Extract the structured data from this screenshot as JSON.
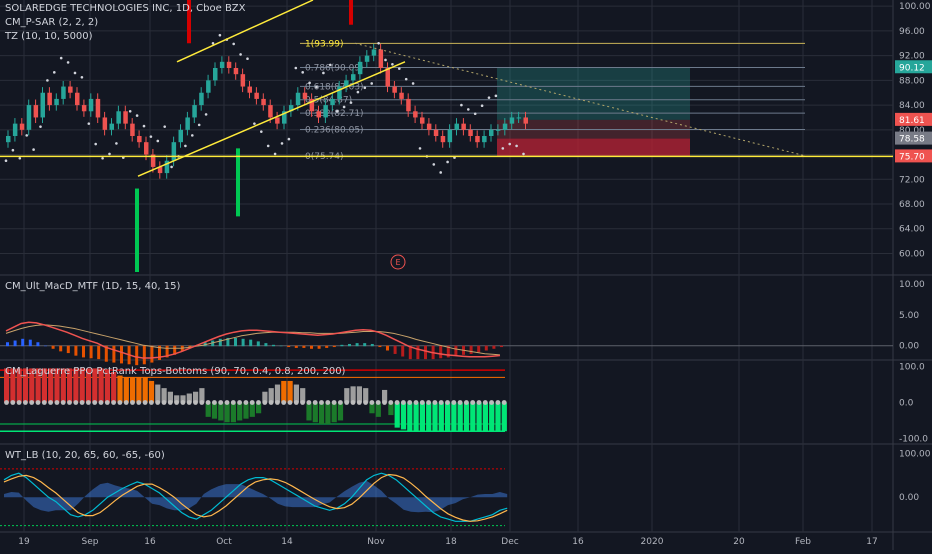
{
  "header": {
    "title": "SOLAREDGE TECHNOLOGIES INC, 1D, Cboe BZX",
    "indicators": [
      "CM_P-SAR (2, 2, 2)",
      "TZ (10, 10, 5000)"
    ]
  },
  "panes": {
    "macd": {
      "label": "CM_Ult_MacD_MTF (1D, 15, 40, 15)",
      "ticks": [
        "10.00",
        "5.00",
        "0.00"
      ]
    },
    "laguerre": {
      "label": "CM_Laguerre PPO PctRank Tops-Bottoms (90, 70, 0.4, 0.8, 200, 200)",
      "ticks": [
        "100.0",
        "0.0",
        "-100.0"
      ]
    },
    "wt": {
      "label": "WT_LB (10, 20, 65, 60, -65, -60)",
      "ticks": [
        "100.00",
        "0.00"
      ]
    }
  },
  "event_marker": "E",
  "colors": {
    "background": "#131722",
    "up_candle": "#26a69a",
    "down_candle": "#ef5350",
    "trend_line": "#ffeb3b",
    "grid": "#2a2e39",
    "axis_text": "#b2b5be"
  },
  "chart_data": [
    {
      "type": "candlestick",
      "title": "SOLAREDGE TECHNOLOGIES INC, 1D, Cboe BZX",
      "ylim": [
        57,
        101
      ],
      "y_ticks": [
        100.0,
        96.0,
        92.0,
        88.0,
        84.0,
        80.0,
        76.0,
        72.0,
        68.0,
        64.0,
        60.0
      ],
      "x_tick_labels": [
        "19",
        "Sep",
        "16",
        "Oct",
        "14",
        "Nov",
        "18",
        "Dec",
        "16",
        "2020",
        "20",
        "Feb",
        "17"
      ],
      "close": [
        79,
        81,
        80,
        84,
        82,
        86,
        84,
        85,
        87,
        86,
        84,
        83,
        85,
        82,
        80,
        81,
        83,
        81,
        79,
        78,
        76,
        74,
        73,
        75,
        78,
        80,
        82,
        84,
        86,
        88,
        90,
        91,
        90,
        89,
        87,
        86,
        85,
        84,
        82,
        81,
        83,
        84,
        86,
        85,
        83,
        82,
        84,
        85,
        87,
        88,
        89,
        91,
        92,
        93,
        90,
        87,
        86,
        85,
        83,
        82,
        81,
        80,
        79,
        78,
        80,
        81,
        80,
        79,
        78,
        79,
        80,
        80,
        81,
        82,
        82,
        81
      ],
      "price_labels": [
        {
          "text": "90.12",
          "value": 90.12,
          "color": "#26a69a"
        },
        {
          "text": "81.61",
          "value": 81.61,
          "color": "#ef5350"
        },
        {
          "text": "78.58",
          "value": 78.58,
          "color": "#787b86"
        },
        {
          "text": "75.70",
          "value": 75.7,
          "color": "#ef5350"
        }
      ],
      "fib_levels": [
        {
          "label": "1(93.99)",
          "value": 93.99
        },
        {
          "label": "0.786(90.09)",
          "value": 90.09
        },
        {
          "label": "0.618(87.03)",
          "value": 87.03
        },
        {
          "label": "0.5(84.87)",
          "value": 84.87
        },
        {
          "label": "0.382(82.71)",
          "value": 82.71
        },
        {
          "label": "0.236(80.05)",
          "value": 80.05
        },
        {
          "label": "0(75.74)",
          "value": 75.74
        }
      ],
      "position": {
        "entry": 81.61,
        "target": 90.12,
        "stop": 78.58,
        "stop_far": 75.7
      },
      "support_level": 75.7
    },
    {
      "type": "line",
      "title": "CM_Ult_MacD_MTF (1D, 15, 40, 15)",
      "ylim": [
        -2,
        11
      ],
      "macd": [
        2.4,
        3.0,
        3.6,
        3.8,
        3.7,
        3.4,
        3.0,
        2.6,
        2.2,
        1.7,
        1.2,
        0.8,
        0.4,
        -0.2,
        -0.6,
        -1.0,
        -1.4,
        -1.8,
        -2.0,
        -2.0,
        -1.9,
        -1.7,
        -1.4,
        -1.0,
        -0.5,
        0.0,
        0.5,
        1.0,
        1.5,
        1.9,
        2.2,
        2.4,
        2.5,
        2.5,
        2.4,
        2.3,
        2.2,
        2.1,
        2.0,
        1.9,
        1.8,
        1.7,
        1.8,
        1.9,
        2.1,
        2.3,
        2.5,
        2.6,
        2.5,
        2.2,
        1.7,
        1.1,
        0.5,
        -0.1,
        -0.5,
        -0.8,
        -1.1,
        -1.3,
        -1.5,
        -1.6,
        -1.7,
        -1.8,
        -1.8,
        -1.8,
        -1.7,
        -1.6
      ],
      "signal": [
        2.0,
        2.4,
        2.8,
        3.1,
        3.3,
        3.4,
        3.3,
        3.2,
        3.0,
        2.8,
        2.5,
        2.2,
        1.9,
        1.6,
        1.3,
        1.0,
        0.7,
        0.4,
        0.1,
        -0.1,
        -0.3,
        -0.4,
        -0.4,
        -0.4,
        -0.3,
        -0.1,
        0.1,
        0.4,
        0.7,
        1.0,
        1.3,
        1.6,
        1.8,
        2.0,
        2.1,
        2.2,
        2.2,
        2.2,
        2.2,
        2.1,
        2.1,
        2.0,
        2.0,
        2.0,
        2.0,
        2.1,
        2.2,
        2.3,
        2.3,
        2.3,
        2.2,
        2.0,
        1.7,
        1.4,
        1.0,
        0.7,
        0.4,
        0.1,
        -0.2,
        -0.5,
        -0.7,
        -0.9,
        -1.1,
        -1.3,
        -1.4,
        -1.5
      ]
    },
    {
      "type": "bar",
      "title": "CM_Laguerre PPO PctRank Tops-Bottoms (90, 70, 0.4, 0.8, 200, 200)",
      "ylim": [
        -110,
        110
      ],
      "upper_lines": [
        90,
        70
      ],
      "lower_lines": [
        -60,
        -80
      ],
      "values": [
        95,
        95,
        95,
        95,
        95,
        95,
        95,
        95,
        95,
        95,
        95,
        95,
        95,
        95,
        95,
        95,
        90,
        85,
        75,
        70,
        70,
        70,
        70,
        60,
        50,
        40,
        30,
        20,
        20,
        25,
        30,
        40,
        -40,
        -45,
        -50,
        -55,
        -55,
        -50,
        -45,
        -40,
        -30,
        30,
        40,
        50,
        60,
        60,
        50,
        40,
        -50,
        -55,
        -60,
        -60,
        -55,
        -50,
        40,
        45,
        45,
        40,
        -30,
        -40,
        35,
        -35,
        -70,
        -75,
        -80,
        -80,
        -80,
        -80,
        -80,
        -80,
        -80,
        -80,
        -80,
        -80,
        -80,
        -80,
        -80,
        -80,
        -80,
        -80
      ]
    },
    {
      "type": "line",
      "title": "WT_LB (10, 20, 65, 60, -65, -60)",
      "ylim": [
        -75,
        115
      ],
      "overbought": 65,
      "oversold": -65,
      "wt1": [
        40,
        50,
        55,
        45,
        30,
        15,
        0,
        -10,
        -25,
        -40,
        -45,
        -40,
        -30,
        -15,
        0,
        10,
        20,
        28,
        35,
        30,
        20,
        10,
        -5,
        -20,
        -35,
        -45,
        -50,
        -40,
        -30,
        -15,
        0,
        15,
        30,
        40,
        45,
        45,
        40,
        30,
        20,
        10,
        0,
        -10,
        -20,
        -25,
        -30,
        -25,
        -15,
        0,
        20,
        40,
        50,
        55,
        50,
        40,
        25,
        10,
        -5,
        -20,
        -35,
        -45,
        -50,
        -55,
        -55,
        -55,
        -50,
        -45,
        -40,
        -30,
        -25
      ],
      "wt2": [
        35,
        42,
        48,
        50,
        45,
        35,
        22,
        10,
        -5,
        -20,
        -35,
        -42,
        -42,
        -35,
        -22,
        -8,
        5,
        15,
        25,
        30,
        30,
        22,
        12,
        0,
        -15,
        -28,
        -40,
        -45,
        -42,
        -32,
        -20,
        -5,
        10,
        25,
        35,
        40,
        42,
        40,
        34,
        25,
        15,
        5,
        -5,
        -14,
        -22,
        -26,
        -24,
        -16,
        -2,
        15,
        32,
        45,
        52,
        50,
        44,
        32,
        18,
        2,
        -12,
        -26,
        -38,
        -46,
        -52,
        -55,
        -54,
        -50,
        -45,
        -38,
        -30
      ]
    }
  ]
}
